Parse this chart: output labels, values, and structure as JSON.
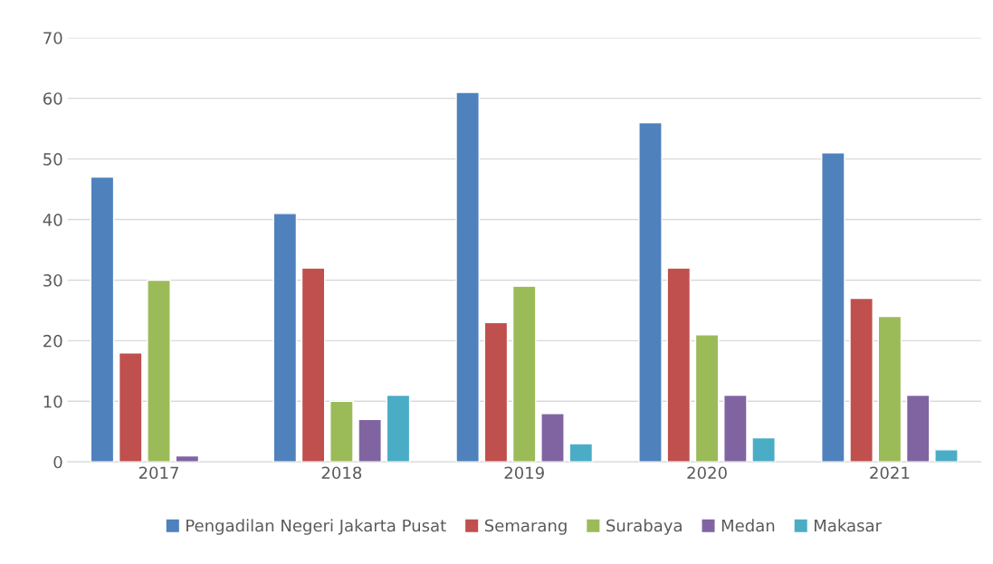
{
  "chart_data": {
    "type": "bar",
    "categories": [
      "2017",
      "2018",
      "2019",
      "2020",
      "2021"
    ],
    "series": [
      {
        "name": "Pengadilan Negeri Jakarta Pusat",
        "color": "#4f81bd",
        "values": [
          47,
          41,
          61,
          56,
          51
        ]
      },
      {
        "name": "Semarang",
        "color": "#c0504d",
        "values": [
          18,
          32,
          23,
          32,
          27
        ]
      },
      {
        "name": "Surabaya",
        "color": "#9bbb59",
        "values": [
          30,
          10,
          29,
          21,
          24
        ]
      },
      {
        "name": "Medan",
        "color": "#8064a2",
        "values": [
          1,
          7,
          8,
          11,
          11
        ]
      },
      {
        "name": "Makasar",
        "color": "#4bacc6",
        "values": [
          null,
          11,
          3,
          4,
          2
        ]
      }
    ],
    "ylim": [
      0,
      70
    ],
    "yticks": [
      0,
      10,
      20,
      30,
      40,
      50,
      60,
      70
    ],
    "grid": "y",
    "legend": "bottom"
  }
}
